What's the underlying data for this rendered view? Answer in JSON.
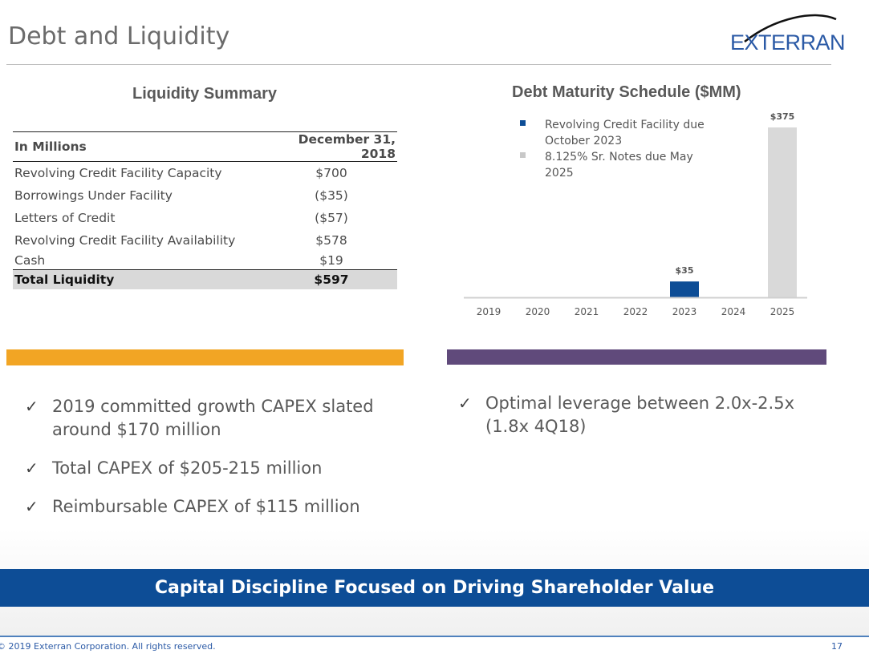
{
  "header": {
    "title": "Debt and Liquidity",
    "logo_text": "EXTERRAN"
  },
  "liquidity": {
    "title": "Liquidity Summary",
    "col_label": "In Millions",
    "col_date": "December 31, 2018",
    "rows": [
      {
        "label": "Revolving Credit Facility Capacity",
        "value": "$700"
      },
      {
        "label": "Borrowings Under Facility",
        "value": "($35)"
      },
      {
        "label": "Letters of Credit",
        "value": "($57)"
      },
      {
        "label": "Revolving Credit Facility Availability",
        "value": "$578"
      },
      {
        "label": "Cash",
        "value": "$19"
      }
    ],
    "total": {
      "label": "Total Liquidity",
      "value": "$597"
    }
  },
  "colors": {
    "revolver": "#0d4d96",
    "notes": "#d9d9d9",
    "orange_band": "#f2a524",
    "purple_band": "#604a7b",
    "banner": "#0d4d96"
  },
  "chart_data": {
    "type": "bar",
    "title": "Debt Maturity Schedule ($MM)",
    "categories": [
      "2019",
      "2020",
      "2021",
      "2022",
      "2023",
      "2024",
      "2025"
    ],
    "series": [
      {
        "name": "Revolving Credit Facility due October 2023",
        "values": [
          0,
          0,
          0,
          0,
          35,
          0,
          0
        ]
      },
      {
        "name": "8.125% Sr. Notes due May 2025",
        "values": [
          0,
          0,
          0,
          0,
          0,
          0,
          375
        ]
      }
    ],
    "data_labels": [
      "",
      "",
      "",
      "",
      "$35",
      "",
      "$375"
    ],
    "ylim": [
      0,
      375
    ],
    "grid": false,
    "legend": "top-left"
  },
  "bullets_left": [
    "2019 committed growth CAPEX slated around $170 million",
    "Total CAPEX of $205-215 million",
    "Reimbursable CAPEX of $115 million"
  ],
  "bullets_right": [
    "Optimal leverage between 2.0x-2.5x (1.8x 4Q18)"
  ],
  "bullet_mark": "✓",
  "banner": "Capital Discipline Focused on Driving Shareholder Value",
  "footer": {
    "copyright": "© 2019 Exterran Corporation. All rights reserved.",
    "page": "17"
  }
}
